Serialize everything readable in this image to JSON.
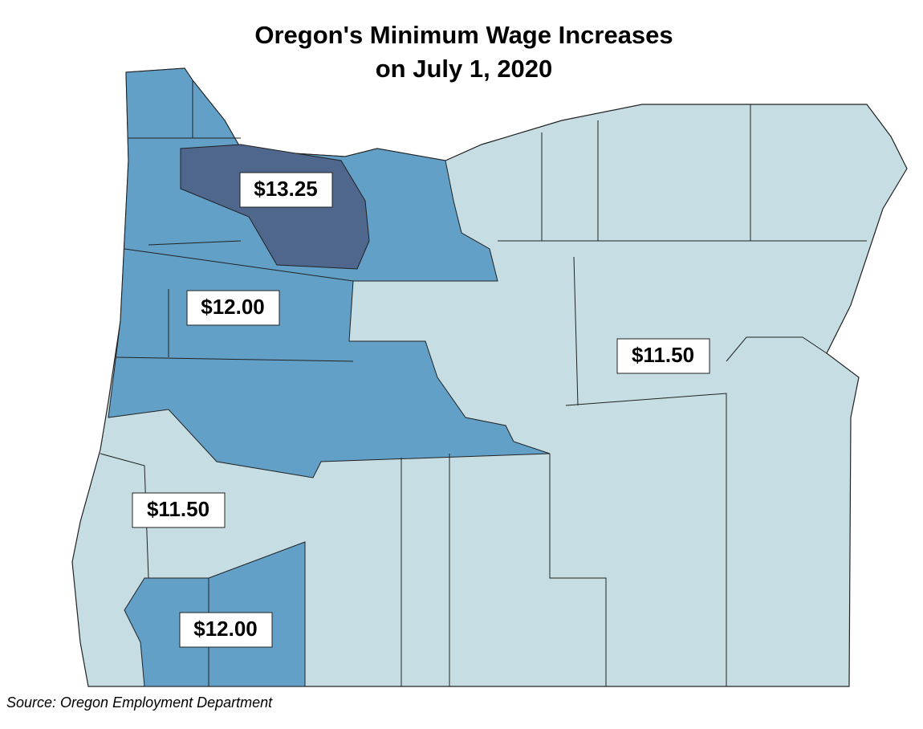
{
  "title": [
    "Oregon's Minimum Wage Increases",
    "on July 1, 2020"
  ],
  "labels": [
    "$13.25",
    "$12.00",
    "$11.50",
    "$11.50",
    "$12.00"
  ],
  "source": "Source: Oregon Employment Department"
}
